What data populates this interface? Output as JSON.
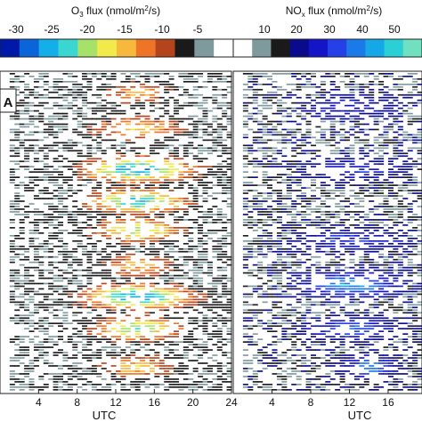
{
  "chart_data": [
    {
      "panel": "A",
      "type": "heatmap",
      "title": "O3 flux (nmol/m2/s)",
      "title_parts": {
        "pre": "O",
        "sub": "3",
        "mid": " flux (nmol/m",
        "sup": "2",
        "post": "/s)"
      },
      "xlabel": "UTC",
      "x_ticks": [
        4,
        8,
        12,
        16,
        20,
        24
      ],
      "xlim": [
        0,
        24
      ],
      "colorbar": {
        "labels": [
          -30,
          -25,
          -20,
          -15,
          -10,
          -5
        ],
        "colors": [
          "#0018a8",
          "#0a66d8",
          "#14aee8",
          "#3ad7d0",
          "#a6e26a",
          "#f2e94a",
          "#f6b93c",
          "#ee7426",
          "#b4441c",
          "#1a1a1a",
          "#7e9a9c",
          "#ffffff"
        ]
      },
      "bands": [
        {
          "y": 0.06,
          "center": 14,
          "width": 4,
          "peak": 0.35
        },
        {
          "y": 0.17,
          "center": 14,
          "width": 5,
          "peak": 0.45
        },
        {
          "y": 0.3,
          "center": 14,
          "width": 6,
          "peak": 0.85
        },
        {
          "y": 0.4,
          "center": 14,
          "width": 5.5,
          "peak": 0.75
        },
        {
          "y": 0.49,
          "center": 14,
          "width": 5,
          "peak": 0.6
        },
        {
          "y": 0.6,
          "center": 14,
          "width": 4,
          "peak": 0.4
        },
        {
          "y": 0.7,
          "center": 14,
          "width": 6,
          "peak": 0.85
        },
        {
          "y": 0.8,
          "center": 14,
          "width": 5,
          "peak": 0.65
        },
        {
          "y": 0.92,
          "center": 14,
          "width": 4,
          "peak": 0.45
        }
      ]
    },
    {
      "type": "heatmap",
      "title": "NOx flux (nmol/m2/s)",
      "title_parts": {
        "pre": "NO",
        "sub": "x",
        "mid": " flux (nmol/m",
        "sup": "2",
        "post": "/s)"
      },
      "xlabel": "UTC",
      "x_ticks": [
        4,
        8,
        12,
        16
      ],
      "xlim": [
        0,
        19.5
      ],
      "colorbar": {
        "labels": [
          10,
          20,
          30,
          40,
          50
        ],
        "colors": [
          "#ffffff",
          "#7e9a9c",
          "#1a1a1a",
          "#0a0a8c",
          "#1414c8",
          "#2440e6",
          "#1a7ae8",
          "#16a8e6",
          "#2ad0d6",
          "#6fe0c0"
        ]
      },
      "bands": [
        {
          "y": 0.1,
          "center": 12,
          "width": 6,
          "peak": 0.25
        },
        {
          "y": 0.3,
          "center": 12,
          "width": 6,
          "peak": 0.3
        },
        {
          "y": 0.52,
          "center": 12,
          "width": 6,
          "peak": 0.35
        },
        {
          "y": 0.66,
          "center": 12,
          "width": 5,
          "peak": 0.6
        },
        {
          "y": 0.8,
          "center": 12,
          "width": 5,
          "peak": 0.45
        },
        {
          "y": 0.92,
          "center": 14,
          "width": 3,
          "peak": 0.5
        }
      ]
    }
  ]
}
